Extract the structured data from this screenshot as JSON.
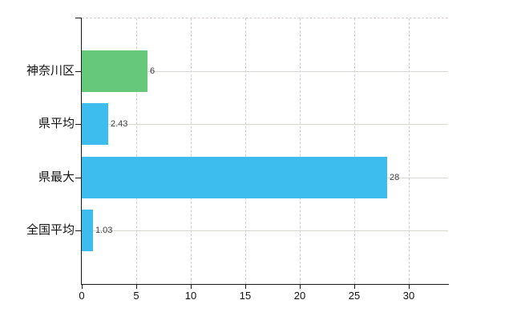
{
  "chart_data": {
    "type": "bar",
    "orientation": "horizontal",
    "title": "",
    "xlabel": "",
    "ylabel": "",
    "categories": [
      "神奈川区",
      "県平均",
      "県最大",
      "全国平均"
    ],
    "values": [
      6,
      2.43,
      28,
      1.03
    ],
    "value_labels": [
      "6",
      "2.43",
      "28",
      "1.03"
    ],
    "bar_colors": [
      "#65c87b",
      "#3cbdee",
      "#3cbdee",
      "#3cbdee"
    ],
    "xlim": [
      0,
      33.6
    ],
    "xticks": [
      0,
      5,
      10,
      15,
      20,
      25,
      30
    ],
    "xtick_labels": [
      "0",
      "5",
      "10",
      "15",
      "20",
      "25",
      "30"
    ],
    "grid": {
      "vertical_style": "dashed",
      "horizontal_style": "solid",
      "horizontal_at": "category-centers",
      "top_border": "dashed",
      "vertical_color": "#d6ccd4",
      "horizontal_color": "#d5d8d1"
    },
    "legend": null,
    "colors": {
      "background": "#ffffff",
      "axis": "#1a1a1a",
      "category_label": "#111111",
      "tick_label": "#111111",
      "value_label": "#3c3c3c"
    }
  }
}
